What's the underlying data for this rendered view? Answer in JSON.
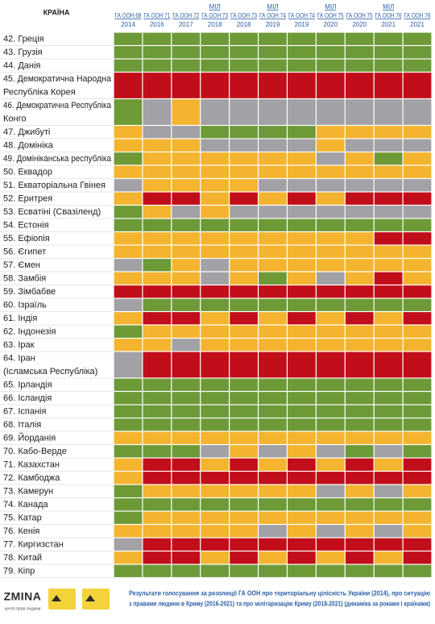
{
  "header": {
    "country": "КРАЇНА",
    "columns": [
      {
        "lines": [
          "ГА ООН 68",
          "2014"
        ]
      },
      {
        "lines": [
          "ГА ООН 71",
          "2016"
        ]
      },
      {
        "lines": [
          "ГА ООН 72",
          "2017"
        ]
      },
      {
        "lines": [
          "МІЛ",
          "ГА ООН 73",
          "2018"
        ]
      },
      {
        "lines": [
          "ГА ООН 73",
          "2018"
        ]
      },
      {
        "lines": [
          "МІЛ",
          "ГА ООН 74",
          "2019"
        ]
      },
      {
        "lines": [
          "ГА ООН 74",
          "2019"
        ]
      },
      {
        "lines": [
          "МІЛ",
          "ГА ООН 75",
          "2020"
        ]
      },
      {
        "lines": [
          "ГА ООН 75",
          "2020"
        ]
      },
      {
        "lines": [
          "МІЛ",
          "ГА ООН 76",
          "2021"
        ]
      },
      {
        "lines": [
          "ГА ООН 76",
          "2021"
        ]
      }
    ]
  },
  "colors": {
    "g": "#6d9a37",
    "r": "#c20e1a",
    "o": "#f4b42f",
    "x": "#a2a2a6"
  },
  "rows": [
    {
      "lines": [
        "42. Греція"
      ],
      "cells": [
        "g",
        "g",
        "g",
        "g",
        "g",
        "g",
        "g",
        "g",
        "g",
        "g",
        "g"
      ]
    },
    {
      "lines": [
        "43. Грузія"
      ],
      "cells": [
        "g",
        "g",
        "g",
        "g",
        "g",
        "g",
        "g",
        "g",
        "g",
        "g",
        "g"
      ]
    },
    {
      "lines": [
        "44. Данія"
      ],
      "cells": [
        "g",
        "g",
        "g",
        "g",
        "g",
        "g",
        "g",
        "g",
        "g",
        "g",
        "g"
      ]
    },
    {
      "lines": [
        "45. Демократична Народна",
        "Республіка Корея"
      ],
      "cells": [
        "r",
        "r",
        "r",
        "r",
        "r",
        "r",
        "r",
        "r",
        "r",
        "r",
        "r"
      ]
    },
    {
      "lines": [
        "46. Демократична Республіка",
        "Конго"
      ],
      "cells": [
        "g",
        "x",
        "o",
        "x",
        "x",
        "x",
        "x",
        "x",
        "x",
        "x",
        "x"
      ]
    },
    {
      "lines": [
        "47. Джибуті"
      ],
      "cells": [
        "o",
        "x",
        "x",
        "g",
        "g",
        "g",
        "g",
        "o",
        "o",
        "o",
        "o"
      ]
    },
    {
      "lines": [
        "48. Домініка"
      ],
      "cells": [
        "o",
        "o",
        "o",
        "x",
        "x",
        "x",
        "x",
        "o",
        "x",
        "x",
        "x"
      ]
    },
    {
      "lines": [
        "49. Домініканська республіка"
      ],
      "cells": [
        "g",
        "o",
        "o",
        "o",
        "o",
        "o",
        "o",
        "x",
        "o",
        "g",
        "o"
      ]
    },
    {
      "lines": [
        "50. Еквадор"
      ],
      "cells": [
        "o",
        "o",
        "o",
        "o",
        "o",
        "o",
        "o",
        "o",
        "o",
        "o",
        "o"
      ]
    },
    {
      "lines": [
        "51. Екваторіальна Гвінея"
      ],
      "cells": [
        "x",
        "o",
        "o",
        "o",
        "o",
        "x",
        "x",
        "x",
        "x",
        "x",
        "x"
      ]
    },
    {
      "lines": [
        "52. Еритрея"
      ],
      "cells": [
        "o",
        "r",
        "r",
        "o",
        "r",
        "o",
        "r",
        "o",
        "r",
        "r",
        "r"
      ]
    },
    {
      "lines": [
        "53. Есватіні (Свазіленд)"
      ],
      "cells": [
        "g",
        "o",
        "x",
        "o",
        "x",
        "x",
        "x",
        "x",
        "x",
        "x",
        "x"
      ]
    },
    {
      "lines": [
        "54. Естонія"
      ],
      "cells": [
        "g",
        "g",
        "g",
        "g",
        "g",
        "g",
        "g",
        "g",
        "g",
        "g",
        "g"
      ]
    },
    {
      "lines": [
        "55. Ефіопія"
      ],
      "cells": [
        "o",
        "o",
        "o",
        "o",
        "o",
        "o",
        "o",
        "o",
        "o",
        "r",
        "r"
      ]
    },
    {
      "lines": [
        "56. Єгипет"
      ],
      "cells": [
        "o",
        "o",
        "o",
        "o",
        "o",
        "o",
        "o",
        "o",
        "o",
        "o",
        "o"
      ]
    },
    {
      "lines": [
        "57. Ємен"
      ],
      "cells": [
        "x",
        "g",
        "o",
        "x",
        "o",
        "o",
        "o",
        "o",
        "o",
        "o",
        "o"
      ]
    },
    {
      "lines": [
        "58. Замбія"
      ],
      "cells": [
        "o",
        "o",
        "o",
        "x",
        "o",
        "g",
        "o",
        "x",
        "o",
        "r",
        "o"
      ]
    },
    {
      "lines": [
        "59. Зімбабве"
      ],
      "cells": [
        "r",
        "r",
        "r",
        "r",
        "r",
        "r",
        "r",
        "r",
        "r",
        "r",
        "r"
      ]
    },
    {
      "lines": [
        "60. Ізраїль"
      ],
      "cells": [
        "x",
        "g",
        "g",
        "g",
        "g",
        "g",
        "g",
        "g",
        "g",
        "g",
        "g"
      ]
    },
    {
      "lines": [
        "61. Індія"
      ],
      "cells": [
        "o",
        "r",
        "r",
        "o",
        "r",
        "o",
        "r",
        "o",
        "r",
        "o",
        "r"
      ]
    },
    {
      "lines": [
        "62. Індонезія"
      ],
      "cells": [
        "g",
        "o",
        "o",
        "o",
        "o",
        "o",
        "o",
        "o",
        "o",
        "o",
        "o"
      ]
    },
    {
      "lines": [
        "63. Ірак"
      ],
      "cells": [
        "o",
        "o",
        "x",
        "o",
        "o",
        "o",
        "o",
        "o",
        "o",
        "o",
        "o"
      ]
    },
    {
      "lines": [
        "64. Іран",
        "(Ісламська Республіка)"
      ],
      "cells": [
        "x",
        "r",
        "r",
        "r",
        "r",
        "r",
        "r",
        "r",
        "r",
        "r",
        "r"
      ]
    },
    {
      "lines": [
        "65. Ірландія"
      ],
      "cells": [
        "g",
        "g",
        "g",
        "g",
        "g",
        "g",
        "g",
        "g",
        "g",
        "g",
        "g"
      ]
    },
    {
      "lines": [
        "66. Ісландія"
      ],
      "cells": [
        "g",
        "g",
        "g",
        "g",
        "g",
        "g",
        "g",
        "g",
        "g",
        "g",
        "g"
      ]
    },
    {
      "lines": [
        "67. Іспанія"
      ],
      "cells": [
        "g",
        "g",
        "g",
        "g",
        "g",
        "g",
        "g",
        "g",
        "g",
        "g",
        "g"
      ]
    },
    {
      "lines": [
        "68. Італія"
      ],
      "cells": [
        "g",
        "g",
        "g",
        "g",
        "g",
        "g",
        "g",
        "g",
        "g",
        "g",
        "g"
      ]
    },
    {
      "lines": [
        "69. Йорданія"
      ],
      "cells": [
        "o",
        "o",
        "o",
        "o",
        "o",
        "o",
        "o",
        "o",
        "o",
        "o",
        "o"
      ]
    },
    {
      "lines": [
        "70. Кабо-Верде"
      ],
      "cells": [
        "g",
        "g",
        "g",
        "x",
        "o",
        "x",
        "o",
        "x",
        "g",
        "x",
        "g"
      ]
    },
    {
      "lines": [
        "71. Казахстан"
      ],
      "cells": [
        "o",
        "r",
        "r",
        "o",
        "r",
        "o",
        "r",
        "o",
        "r",
        "o",
        "r"
      ]
    },
    {
      "lines": [
        "72. Камбоджа"
      ],
      "cells": [
        "o",
        "r",
        "r",
        "r",
        "r",
        "r",
        "r",
        "r",
        "r",
        "r",
        "r"
      ]
    },
    {
      "lines": [
        "73. Камерун"
      ],
      "cells": [
        "g",
        "o",
        "o",
        "o",
        "o",
        "o",
        "o",
        "x",
        "o",
        "x",
        "o"
      ]
    },
    {
      "lines": [
        "74. Канада"
      ],
      "cells": [
        "g",
        "g",
        "g",
        "g",
        "g",
        "g",
        "g",
        "g",
        "g",
        "g",
        "g"
      ]
    },
    {
      "lines": [
        "75. Катар"
      ],
      "cells": [
        "g",
        "o",
        "o",
        "o",
        "o",
        "o",
        "o",
        "o",
        "o",
        "o",
        "o"
      ]
    },
    {
      "lines": [
        "76. Кенія"
      ],
      "cells": [
        "o",
        "o",
        "o",
        "o",
        "o",
        "x",
        "o",
        "x",
        "o",
        "x",
        "o"
      ]
    },
    {
      "lines": [
        "77. Киргизстан"
      ],
      "cells": [
        "x",
        "r",
        "r",
        "r",
        "r",
        "r",
        "r",
        "r",
        "r",
        "r",
        "r"
      ]
    },
    {
      "lines": [
        "78. Китай"
      ],
      "cells": [
        "o",
        "r",
        "r",
        "o",
        "r",
        "o",
        "r",
        "o",
        "r",
        "o",
        "r"
      ]
    },
    {
      "lines": [
        "79. Кіпр"
      ],
      "cells": [
        "g",
        "g",
        "g",
        "g",
        "g",
        "g",
        "g",
        "g",
        "g",
        "g",
        "g"
      ]
    }
  ],
  "footer": {
    "logo": "ZMINA",
    "logo_sub": "центр прав людини",
    "lines": [
      "Результати голосування за резолюції ГА ООН про територіальну цілісність України (2014), про ситуацію",
      "з правами людини в Криму (2016-2021) та про мілітаризацію Криму (2018-2021) (динаміка за роками і країнами)"
    ]
  }
}
